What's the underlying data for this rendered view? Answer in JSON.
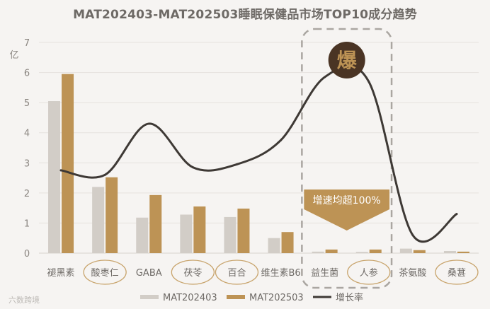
{
  "chart_data": {
    "type": "bar",
    "title": "MAT202403-MAT202503睡眠保健品市场TOP10成分趋势",
    "ylabel": "亿",
    "ylim": [
      0,
      7
    ],
    "yticks": [
      "0",
      "1",
      "2",
      "3",
      "4",
      "5",
      "6",
      "7"
    ],
    "categories": [
      "褪黑素",
      "酸枣仁",
      "GABA",
      "茯苓",
      "百合",
      "维生素B6",
      "益生菌",
      "人参",
      "茶氨酸",
      "桑葚"
    ],
    "circled_categories": [
      "酸枣仁",
      "茯苓",
      "百合",
      "人参",
      "桑葚"
    ],
    "series": [
      {
        "name": "MAT202403",
        "type": "bar",
        "color": "#d2cdc7",
        "values": [
          5.05,
          2.2,
          1.18,
          1.28,
          1.2,
          0.5,
          0.05,
          0.04,
          0.15,
          0.07
        ]
      },
      {
        "name": "MAT202503",
        "type": "bar",
        "color": "#bd9355",
        "values": [
          5.95,
          2.52,
          1.93,
          1.55,
          1.48,
          0.7,
          0.12,
          0.12,
          0.1,
          0.05
        ]
      },
      {
        "name": "增长率",
        "type": "line",
        "color": "#3e3935",
        "values": [
          2.75,
          2.6,
          4.3,
          2.85,
          2.95,
          3.75,
          5.85,
          5.7,
          0.6,
          1.3
        ]
      }
    ],
    "grid": true,
    "legend_position": "bottom",
    "annotations": {
      "badge": "爆",
      "callout": "增速均超100%"
    }
  },
  "source_watermark": "六数跨境"
}
